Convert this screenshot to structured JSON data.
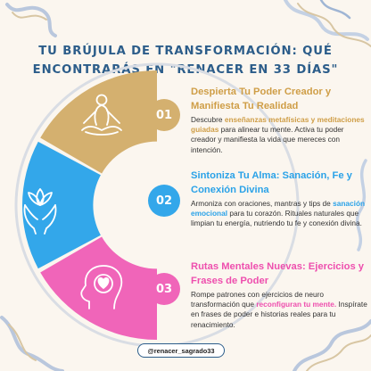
{
  "title": {
    "line1": "TU BRÚJULA DE TRANSFORMACIÓN: QUÉ",
    "line2": "ENCONTRARÁS EN \"RENACER EN 33 DÍAS\""
  },
  "colors": {
    "gold": "#d4b06f",
    "blue": "#33a7ea",
    "pink": "#f065b9",
    "navy": "#2c5d8a"
  },
  "sections": [
    {
      "number": "01",
      "icon": "meditation-icon",
      "heading": "Despierta Tu Poder Creador y Manifiesta Tu Realidad",
      "text_a": "Descubre ",
      "highlight": "enseñanzas metafísicas y meditaciones guiadas",
      "text_b": " para alinear tu mente. Activa tu poder creador y manifiesta la vida que mereces con intención."
    },
    {
      "number": "02",
      "icon": "lotus-hands-icon",
      "heading": "Sintoniza Tu Alma: Sanación, Fe y Conexión Divina",
      "text_a": "Armoniza con oraciones, mantras y tips de ",
      "highlight": "sanación emocional",
      "text_b": " para tu corazón. Rituales naturales que limpian tu energía, nutriendo tu fe y conexión divina."
    },
    {
      "number": "03",
      "icon": "head-heart-icon",
      "heading": "Rutas Mentales Nuevas: Ejercicios y Frases de Poder",
      "text_a": "Rompe patrones con ejercicios de neuro transformación que ",
      "highlight": "reconfiguran tu mente.",
      "text_b": " Inspírate en frases de poder e historias reales para tu renacimiento."
    }
  ],
  "handle": "@renacer_sagrado33"
}
